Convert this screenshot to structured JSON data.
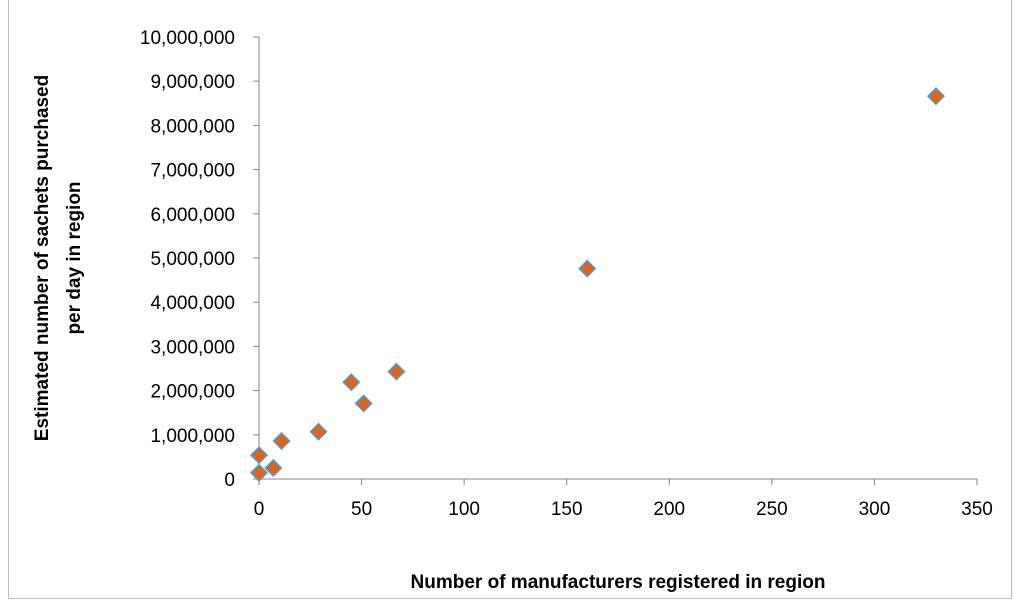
{
  "chart_data": {
    "type": "scatter",
    "title": "",
    "xlabel": "Number of manufacturers registered in region",
    "ylabel_lines": [
      "Estimated number of sachets purchased",
      "per day in region"
    ],
    "xlim": [
      0,
      350
    ],
    "ylim": [
      0,
      10000000
    ],
    "x_ticks": [
      0,
      50,
      100,
      150,
      200,
      250,
      300,
      350
    ],
    "y_ticks": [
      0,
      1000000,
      2000000,
      3000000,
      4000000,
      5000000,
      6000000,
      7000000,
      8000000,
      9000000,
      10000000
    ],
    "x_tick_labels": [
      "0",
      "50",
      "100",
      "150",
      "200",
      "250",
      "300",
      "350"
    ],
    "y_tick_labels": [
      "0",
      "1,000,000",
      "2,000,000",
      "3,000,000",
      "4,000,000",
      "5,000,000",
      "6,000,000",
      "7,000,000",
      "8,000,000",
      "9,000,000",
      "10,000,000"
    ],
    "grid": false,
    "legend": "none",
    "marker": "diamond",
    "marker_fill": "#e0621b",
    "marker_stroke": "#4a9fc9",
    "points": [
      {
        "x": 0,
        "y": 140000
      },
      {
        "x": 0,
        "y": 540000
      },
      {
        "x": 7,
        "y": 250000
      },
      {
        "x": 11,
        "y": 860000
      },
      {
        "x": 29,
        "y": 1070000
      },
      {
        "x": 45,
        "y": 2190000
      },
      {
        "x": 51,
        "y": 1710000
      },
      {
        "x": 67,
        "y": 2430000
      },
      {
        "x": 160,
        "y": 4760000
      },
      {
        "x": 330,
        "y": 8660000
      }
    ]
  }
}
